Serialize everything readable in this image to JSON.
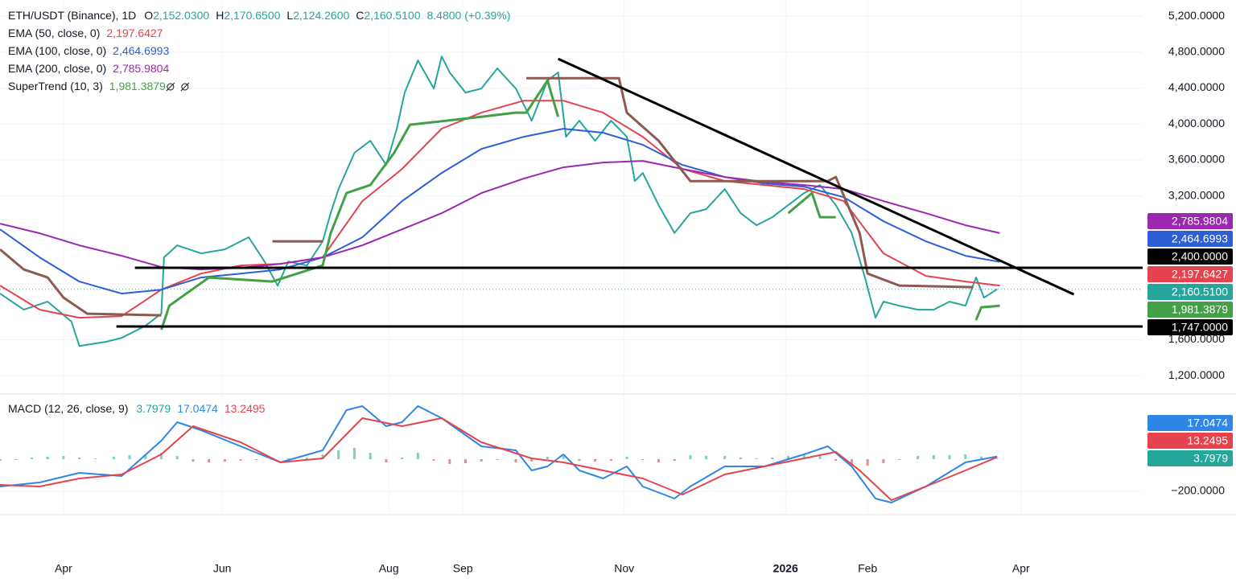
{
  "chart_data": [
    {
      "type": "line",
      "xlim": [
        0,
        432
      ],
      "ylim": [
        995,
        5380
      ],
      "yticks": [
        {
          "value": 5200,
          "label": "5,200.0000"
        },
        {
          "value": 4800,
          "label": "4,800.0000"
        },
        {
          "value": 4400,
          "label": "4,400.0000"
        },
        {
          "value": 4000,
          "label": "4,000.0000"
        },
        {
          "value": 3600,
          "label": "3,600.0000"
        },
        {
          "value": 3200,
          "label": "3,200.0000"
        },
        {
          "value": 1600,
          "label": "1,600.0000"
        },
        {
          "value": 1200,
          "label": "1,200.0000"
        }
      ],
      "grid": true,
      "series": [
        {
          "name": "ETH/USDT (Binance), 1D",
          "color": "#26a69a",
          "ohlc": [
            {
              "key": "O",
              "value": "2,152.0300"
            },
            {
              "key": "H",
              "value": "2,170.6500"
            },
            {
              "key": "L",
              "value": "2,124.2600"
            },
            {
              "key": "C",
              "value": "2,160.5100"
            }
          ],
          "change": "8.4800 (+0.39%)",
          "x": [
            0,
            9,
            18,
            27,
            30,
            40,
            46,
            55,
            61,
            62,
            67,
            76,
            85,
            94,
            100,
            105,
            109,
            116,
            122,
            125,
            128,
            134,
            140,
            146,
            150,
            153,
            158,
            164,
            167,
            170,
            176,
            182,
            188,
            195,
            201,
            207,
            211,
            214,
            219,
            225,
            231,
            237,
            240,
            243,
            249,
            255,
            261,
            267,
            274,
            280,
            286,
            292,
            298,
            304,
            310,
            316,
            322,
            327,
            331,
            334,
            340,
            347,
            353,
            359,
            365,
            369,
            372,
            377
          ],
          "values": [
            2113,
            1934,
            2023,
            1800,
            1530,
            1576,
            1620,
            1755,
            1890,
            2515,
            2650,
            2560,
            2605,
            2740,
            2470,
            2200,
            2470,
            2425,
            2695,
            3008,
            3276,
            3680,
            3813,
            3545,
            3948,
            4350,
            4708,
            4395,
            4753,
            4574,
            4350,
            4395,
            4618,
            4395,
            4037,
            4484,
            4574,
            3858,
            4037,
            3813,
            4037,
            3858,
            3365,
            3455,
            3097,
            2787,
            3008,
            3052,
            3276,
            3008,
            2873,
            2963,
            3097,
            3231,
            3321,
            3097,
            2787,
            2292,
            1844,
            2023,
            1978,
            1934,
            1934,
            2023,
            1978,
            2292,
            2068,
            2161
          ]
        },
        {
          "name": "EMA (50, close, 0)",
          "legend_value": "2,197.6427",
          "color": "#e5434d",
          "x": [
            0,
            15,
            30,
            46,
            61,
            76,
            91,
            106,
            122,
            137,
            152,
            167,
            182,
            198,
            213,
            228,
            243,
            258,
            274,
            289,
            304,
            319,
            334,
            350,
            365,
            378
          ],
          "values": [
            2202,
            1934,
            1844,
            1862,
            2157,
            2336,
            2426,
            2444,
            2515,
            3142,
            3500,
            3948,
            4126,
            4260,
            4260,
            4126,
            3858,
            3500,
            3366,
            3321,
            3276,
            3142,
            2560,
            2310,
            2247,
            2202
          ]
        },
        {
          "name": "EMA (100, close, 0)",
          "legend_value": "2,464.6993",
          "color": "#2c5fd6",
          "x": [
            0,
            15,
            30,
            46,
            61,
            76,
            91,
            106,
            122,
            137,
            152,
            167,
            182,
            198,
            213,
            228,
            243,
            258,
            274,
            289,
            304,
            319,
            334,
            350,
            365,
            378
          ],
          "values": [
            2828,
            2515,
            2247,
            2113,
            2157,
            2292,
            2336,
            2381,
            2515,
            2739,
            3142,
            3455,
            3723,
            3858,
            3947,
            3903,
            3768,
            3545,
            3410,
            3339,
            3303,
            3186,
            2918,
            2694,
            2533,
            2465
          ]
        },
        {
          "name": "EMA (200, close, 0)",
          "legend_value": "2,785.9804",
          "color": "#9c27b0",
          "x": [
            0,
            15,
            30,
            46,
            61,
            76,
            91,
            106,
            122,
            137,
            152,
            167,
            182,
            198,
            213,
            228,
            243,
            258,
            274,
            289,
            304,
            319,
            334,
            350,
            365,
            378
          ],
          "values": [
            2891,
            2784,
            2650,
            2533,
            2408,
            2381,
            2399,
            2444,
            2515,
            2650,
            2828,
            3008,
            3231,
            3392,
            3518,
            3571,
            3589,
            3500,
            3410,
            3357,
            3321,
            3276,
            3142,
            3008,
            2873,
            2786
          ]
        },
        {
          "name": "SuperTrend (10, 3)",
          "legend_value": "1,981.3879",
          "color": "#43a047",
          "down_color": "#8d5a4f",
          "x": [
            0,
            9,
            18,
            24,
            33,
            61,
            64,
            79,
            103,
            122,
            125,
            131,
            140,
            149,
            155,
            182,
            195,
            199,
            207,
            211,
            234,
            237,
            249,
            261,
            298,
            307,
            310,
            313,
            316,
            325,
            328,
            340,
            368,
            369,
            371,
            378
          ],
          "values": [
            null,
            null,
            null,
            null,
            null,
            1710,
            1978,
            2292,
            2247,
            2426,
            2783,
            3231,
            3321,
            3679,
            3992,
            4081,
            4126,
            4126,
            4484,
            4081,
            null,
            null,
            null,
            null,
            3008,
            3231,
            2963,
            2963,
            2963,
            null,
            null,
            null,
            null,
            1817,
            1961,
            1978
          ],
          "down_values": [
            2604,
            2381,
            2292,
            2068,
            1889,
            1871,
            null,
            null,
            2694,
            2694,
            null,
            null,
            null,
            null,
            null,
            null,
            null,
            4510,
            4510,
            4510,
            4510,
            4126,
            3813,
            3365,
            3365,
            3365,
            3365,
            3365,
            3410,
            2787,
            2336,
            2202,
            2184,
            null,
            null,
            null
          ]
        }
      ],
      "levels": [
        {
          "value": 2400,
          "x_start": 51,
          "color": "#000000"
        },
        {
          "value": 1747,
          "x_start": 44,
          "color": "#000000"
        }
      ],
      "trend_line": {
        "x": [
          211,
          406
        ],
        "y": [
          4726,
          2104
        ],
        "color": "#000000"
      },
      "badges": [
        {
          "label": "2,785.9804",
          "color": "#9c27b0"
        },
        {
          "label": "2,464.6993",
          "color": "#2c5fd6"
        },
        {
          "label": "2,400.0000",
          "color": "#000000"
        },
        {
          "label": "2,197.6427",
          "color": "#e5434d"
        },
        {
          "label": "2,160.5100",
          "color": "#26a69a"
        },
        {
          "label": "1,981.3879",
          "color": "#43a047"
        },
        {
          "label": "1,747.0000",
          "color": "#000000"
        }
      ]
    },
    {
      "type": "line",
      "legend_title": "MACD (12, 26, close, 9)",
      "xlim": [
        0,
        432
      ],
      "ylim": [
        -345,
        405
      ],
      "yticks": [
        {
          "value": -200,
          "label": "−200.0000"
        }
      ],
      "xticks": [
        {
          "value": 24,
          "label": "Apr"
        },
        {
          "value": 84,
          "label": "Jun"
        },
        {
          "value": 147,
          "label": "Aug"
        },
        {
          "value": 175,
          "label": "Sep"
        },
        {
          "value": 236,
          "label": "Nov"
        },
        {
          "value": 297,
          "label": "2026"
        },
        {
          "value": 328,
          "label": "Feb"
        },
        {
          "value": 386,
          "label": "Apr"
        }
      ],
      "histogram": {
        "legend_value": "3.7979",
        "color": "#26a69a",
        "up_color": "#7fcfc6",
        "down_color": "#f08a8a",
        "x": [
          0,
          6,
          12,
          18,
          24,
          30,
          36,
          43,
          49,
          55,
          61,
          67,
          73,
          79,
          85,
          91,
          97,
          103,
          109,
          116,
          122,
          128,
          134,
          140,
          146,
          152,
          158,
          164,
          170,
          176,
          182,
          188,
          195,
          201,
          207,
          213,
          219,
          225,
          231,
          237,
          243,
          249,
          255,
          261,
          267,
          274,
          280,
          286,
          292,
          298,
          304,
          310,
          316,
          322,
          328,
          334,
          340,
          347,
          353,
          359,
          365,
          371,
          377
        ],
        "values": [
          -10,
          -5,
          10,
          15,
          20,
          10,
          5,
          15,
          25,
          30,
          40,
          20,
          -15,
          -20,
          -15,
          -10,
          -5,
          -5,
          5,
          10,
          30,
          55,
          70,
          40,
          -20,
          10,
          40,
          -10,
          -30,
          -25,
          -15,
          -5,
          -20,
          -15,
          15,
          20,
          -10,
          -15,
          -10,
          15,
          -5,
          -20,
          -10,
          25,
          20,
          20,
          10,
          5,
          10,
          20,
          25,
          20,
          -10,
          -30,
          -40,
          -25,
          -5,
          20,
          25,
          25,
          30,
          15,
          4
        ]
      },
      "series": [
        {
          "legend_value": "17.0474",
          "color": "#2f86e6",
          "x": [
            0,
            15,
            30,
            46,
            61,
            67,
            76,
            91,
            106,
            122,
            131,
            137,
            146,
            152,
            158,
            167,
            182,
            195,
            201,
            207,
            213,
            219,
            228,
            237,
            243,
            255,
            261,
            274,
            289,
            304,
            313,
            322,
            331,
            337,
            350,
            365,
            377
          ],
          "values": [
            -170,
            -145,
            -85,
            -105,
            115,
            230,
            180,
            80,
            -20,
            55,
            305,
            330,
            205,
            230,
            330,
            255,
            80,
            55,
            -70,
            -45,
            30,
            -70,
            -120,
            -45,
            -170,
            -245,
            -170,
            -45,
            -45,
            30,
            80,
            -45,
            -245,
            -270,
            -170,
            -20,
            17
          ]
        },
        {
          "legend_value": "13.2495",
          "color": "#e5434d",
          "x": [
            0,
            15,
            30,
            46,
            61,
            73,
            91,
            106,
            122,
            137,
            152,
            167,
            182,
            201,
            213,
            228,
            243,
            258,
            274,
            289,
            304,
            316,
            325,
            337,
            350,
            365,
            377
          ],
          "values": [
            -160,
            -170,
            -120,
            -95,
            30,
            205,
            105,
            -20,
            5,
            255,
            205,
            255,
            105,
            5,
            -20,
            -70,
            -120,
            -220,
            -95,
            -45,
            5,
            45,
            -70,
            -255,
            -170,
            -70,
            13
          ]
        }
      ],
      "badges": [
        {
          "label": "17.0474",
          "color": "#2f86e6"
        },
        {
          "label": "13.2495",
          "color": "#e5434d"
        },
        {
          "label": "3.7979",
          "color": "#26a69a"
        }
      ]
    }
  ]
}
